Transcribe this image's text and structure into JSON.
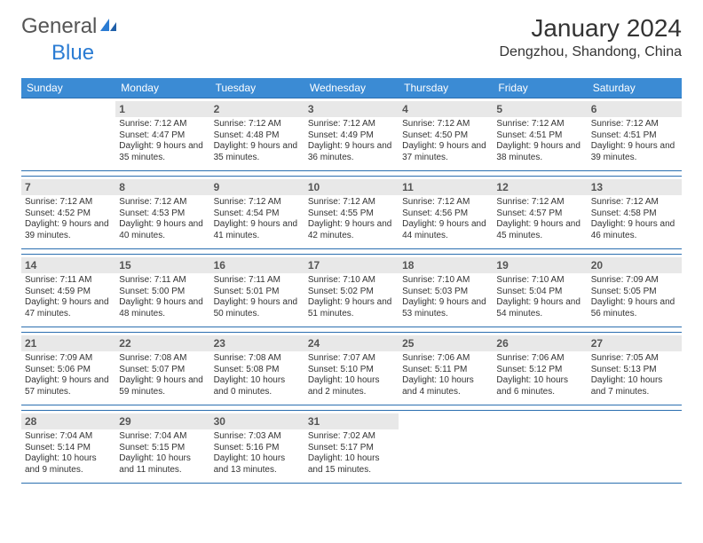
{
  "brand": {
    "part1": "General",
    "part2": "Blue"
  },
  "title": "January 2024",
  "location": "Dengzhou, Shandong, China",
  "colors": {
    "header_bg": "#3b8bd4",
    "header_text": "#ffffff",
    "border": "#2b6fb0",
    "daynum_bg": "#e8e8e8",
    "daynum_text": "#555555",
    "body_text": "#333333",
    "logo_gray": "#555555",
    "logo_blue": "#2b7cd3",
    "page_bg": "#ffffff"
  },
  "typography": {
    "title_size": 28,
    "location_size": 16,
    "dayhead_size": 12,
    "daynum_size": 12,
    "info_size": 10
  },
  "day_names": [
    "Sunday",
    "Monday",
    "Tuesday",
    "Wednesday",
    "Thursday",
    "Friday",
    "Saturday"
  ],
  "weeks": [
    [
      {
        "n": "",
        "sr": "",
        "ss": "",
        "dl": ""
      },
      {
        "n": "1",
        "sr": "Sunrise: 7:12 AM",
        "ss": "Sunset: 4:47 PM",
        "dl": "Daylight: 9 hours and 35 minutes."
      },
      {
        "n": "2",
        "sr": "Sunrise: 7:12 AM",
        "ss": "Sunset: 4:48 PM",
        "dl": "Daylight: 9 hours and 35 minutes."
      },
      {
        "n": "3",
        "sr": "Sunrise: 7:12 AM",
        "ss": "Sunset: 4:49 PM",
        "dl": "Daylight: 9 hours and 36 minutes."
      },
      {
        "n": "4",
        "sr": "Sunrise: 7:12 AM",
        "ss": "Sunset: 4:50 PM",
        "dl": "Daylight: 9 hours and 37 minutes."
      },
      {
        "n": "5",
        "sr": "Sunrise: 7:12 AM",
        "ss": "Sunset: 4:51 PM",
        "dl": "Daylight: 9 hours and 38 minutes."
      },
      {
        "n": "6",
        "sr": "Sunrise: 7:12 AM",
        "ss": "Sunset: 4:51 PM",
        "dl": "Daylight: 9 hours and 39 minutes."
      }
    ],
    [
      {
        "n": "7",
        "sr": "Sunrise: 7:12 AM",
        "ss": "Sunset: 4:52 PM",
        "dl": "Daylight: 9 hours and 39 minutes."
      },
      {
        "n": "8",
        "sr": "Sunrise: 7:12 AM",
        "ss": "Sunset: 4:53 PM",
        "dl": "Daylight: 9 hours and 40 minutes."
      },
      {
        "n": "9",
        "sr": "Sunrise: 7:12 AM",
        "ss": "Sunset: 4:54 PM",
        "dl": "Daylight: 9 hours and 41 minutes."
      },
      {
        "n": "10",
        "sr": "Sunrise: 7:12 AM",
        "ss": "Sunset: 4:55 PM",
        "dl": "Daylight: 9 hours and 42 minutes."
      },
      {
        "n": "11",
        "sr": "Sunrise: 7:12 AM",
        "ss": "Sunset: 4:56 PM",
        "dl": "Daylight: 9 hours and 44 minutes."
      },
      {
        "n": "12",
        "sr": "Sunrise: 7:12 AM",
        "ss": "Sunset: 4:57 PM",
        "dl": "Daylight: 9 hours and 45 minutes."
      },
      {
        "n": "13",
        "sr": "Sunrise: 7:12 AM",
        "ss": "Sunset: 4:58 PM",
        "dl": "Daylight: 9 hours and 46 minutes."
      }
    ],
    [
      {
        "n": "14",
        "sr": "Sunrise: 7:11 AM",
        "ss": "Sunset: 4:59 PM",
        "dl": "Daylight: 9 hours and 47 minutes."
      },
      {
        "n": "15",
        "sr": "Sunrise: 7:11 AM",
        "ss": "Sunset: 5:00 PM",
        "dl": "Daylight: 9 hours and 48 minutes."
      },
      {
        "n": "16",
        "sr": "Sunrise: 7:11 AM",
        "ss": "Sunset: 5:01 PM",
        "dl": "Daylight: 9 hours and 50 minutes."
      },
      {
        "n": "17",
        "sr": "Sunrise: 7:10 AM",
        "ss": "Sunset: 5:02 PM",
        "dl": "Daylight: 9 hours and 51 minutes."
      },
      {
        "n": "18",
        "sr": "Sunrise: 7:10 AM",
        "ss": "Sunset: 5:03 PM",
        "dl": "Daylight: 9 hours and 53 minutes."
      },
      {
        "n": "19",
        "sr": "Sunrise: 7:10 AM",
        "ss": "Sunset: 5:04 PM",
        "dl": "Daylight: 9 hours and 54 minutes."
      },
      {
        "n": "20",
        "sr": "Sunrise: 7:09 AM",
        "ss": "Sunset: 5:05 PM",
        "dl": "Daylight: 9 hours and 56 minutes."
      }
    ],
    [
      {
        "n": "21",
        "sr": "Sunrise: 7:09 AM",
        "ss": "Sunset: 5:06 PM",
        "dl": "Daylight: 9 hours and 57 minutes."
      },
      {
        "n": "22",
        "sr": "Sunrise: 7:08 AM",
        "ss": "Sunset: 5:07 PM",
        "dl": "Daylight: 9 hours and 59 minutes."
      },
      {
        "n": "23",
        "sr": "Sunrise: 7:08 AM",
        "ss": "Sunset: 5:08 PM",
        "dl": "Daylight: 10 hours and 0 minutes."
      },
      {
        "n": "24",
        "sr": "Sunrise: 7:07 AM",
        "ss": "Sunset: 5:10 PM",
        "dl": "Daylight: 10 hours and 2 minutes."
      },
      {
        "n": "25",
        "sr": "Sunrise: 7:06 AM",
        "ss": "Sunset: 5:11 PM",
        "dl": "Daylight: 10 hours and 4 minutes."
      },
      {
        "n": "26",
        "sr": "Sunrise: 7:06 AM",
        "ss": "Sunset: 5:12 PM",
        "dl": "Daylight: 10 hours and 6 minutes."
      },
      {
        "n": "27",
        "sr": "Sunrise: 7:05 AM",
        "ss": "Sunset: 5:13 PM",
        "dl": "Daylight: 10 hours and 7 minutes."
      }
    ],
    [
      {
        "n": "28",
        "sr": "Sunrise: 7:04 AM",
        "ss": "Sunset: 5:14 PM",
        "dl": "Daylight: 10 hours and 9 minutes."
      },
      {
        "n": "29",
        "sr": "Sunrise: 7:04 AM",
        "ss": "Sunset: 5:15 PM",
        "dl": "Daylight: 10 hours and 11 minutes."
      },
      {
        "n": "30",
        "sr": "Sunrise: 7:03 AM",
        "ss": "Sunset: 5:16 PM",
        "dl": "Daylight: 10 hours and 13 minutes."
      },
      {
        "n": "31",
        "sr": "Sunrise: 7:02 AM",
        "ss": "Sunset: 5:17 PM",
        "dl": "Daylight: 10 hours and 15 minutes."
      },
      {
        "n": "",
        "sr": "",
        "ss": "",
        "dl": ""
      },
      {
        "n": "",
        "sr": "",
        "ss": "",
        "dl": ""
      },
      {
        "n": "",
        "sr": "",
        "ss": "",
        "dl": ""
      }
    ]
  ]
}
